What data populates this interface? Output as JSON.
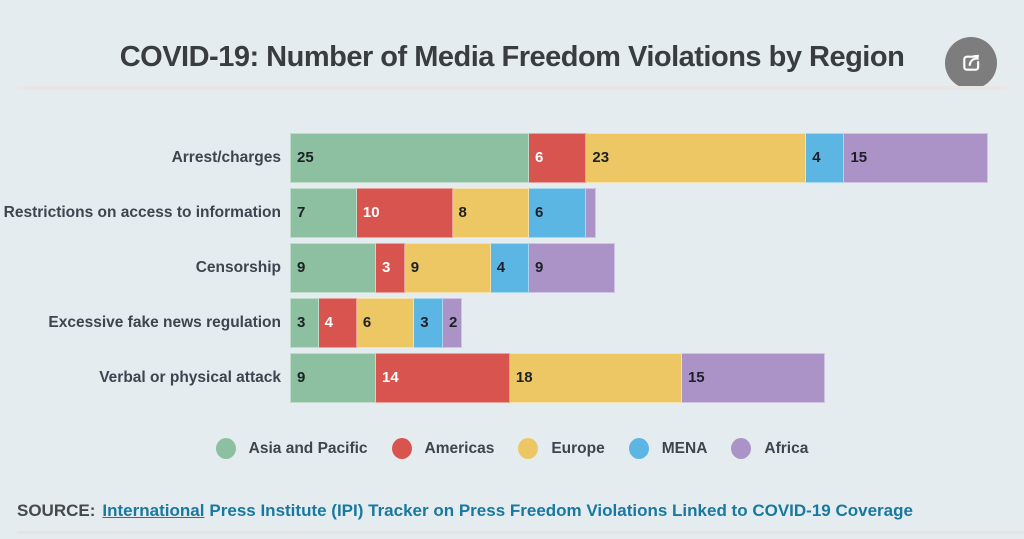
{
  "chart_data": {
    "type": "bar",
    "orientation": "horizontal",
    "stacked": true,
    "title": "COVID-19: Number of Media Freedom Violations by Region",
    "categories": [
      "Arrest/charges",
      "Restrictions on access to information",
      "Censorship",
      "Excessive fake news regulation",
      "Verbal or physical attack"
    ],
    "series": [
      {
        "name": "Asia and Pacific",
        "color": "#8dc0a0",
        "value_label_color": "#1d2127",
        "values": [
          25,
          7,
          9,
          3,
          9
        ]
      },
      {
        "name": "Americas",
        "color": "#d8544f",
        "value_label_color": "#ffffff",
        "values": [
          6,
          10,
          3,
          4,
          14
        ]
      },
      {
        "name": "Europe",
        "color": "#edc763",
        "value_label_color": "#1d2127",
        "values": [
          23,
          8,
          9,
          6,
          18
        ]
      },
      {
        "name": "MENA",
        "color": "#5cb6e4",
        "value_label_color": "#1d2127",
        "values": [
          4,
          6,
          4,
          3,
          0
        ]
      },
      {
        "name": "Africa",
        "color": "#ab93c8",
        "value_label_color": "#1d2127",
        "values": [
          15,
          1,
          9,
          2,
          15
        ]
      }
    ],
    "totals": [
      73,
      32,
      34,
      18,
      56
    ],
    "axis_shown": false,
    "grid": false,
    "legend_position": "bottom",
    "value_labels": "inside-left, hidden when segment narrower than 2 units"
  },
  "share_button": {
    "icon": "share-export-icon"
  },
  "source": {
    "prefix": "SOURCE:",
    "link_text": "International",
    "rest_text": "Press Institute (IPI) Tracker on Press Freedom Violations Linked to COVID-19 Coverage"
  },
  "colors": {
    "background": "#e4ecef",
    "title_text": "#3a3d40",
    "label_text": "#3e4450",
    "source_text": "#1878a0",
    "share_button_bg": "#7d7d7d",
    "divider": "#eae6e3"
  }
}
